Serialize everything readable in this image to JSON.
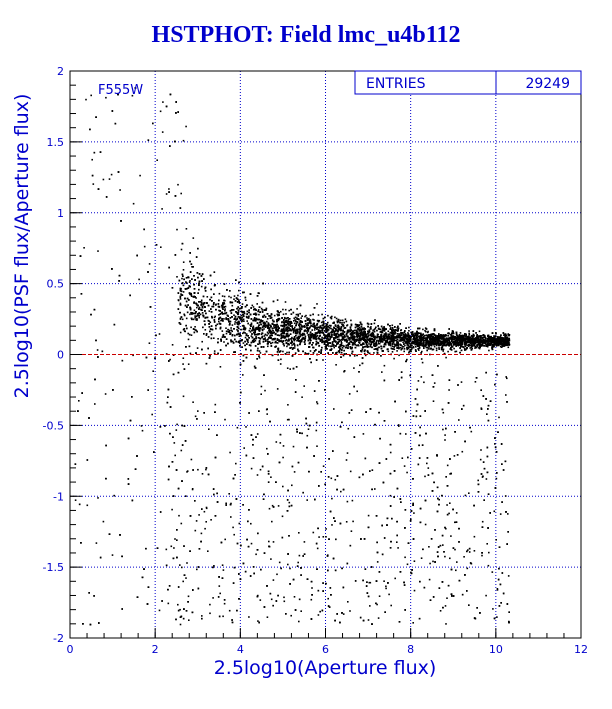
{
  "chart_data": {
    "type": "scatter",
    "title": "HSTPHOT: Field lmc_u4b112",
    "xlabel": "2.5log10(Aperture flux)",
    "ylabel": "2.5log10(PSF flux/Aperture flux)",
    "xlim": [
      0,
      12
    ],
    "ylim": [
      -2,
      2
    ],
    "x_ticks": [
      "0",
      "2",
      "4",
      "6",
      "8",
      "10",
      "12"
    ],
    "y_ticks": [
      "-2",
      "-1.5",
      "-1",
      "-0.5",
      "0",
      "0.5",
      "1",
      "1.5",
      "2"
    ],
    "grid": true,
    "reference_line_y": 0,
    "annotation": "F555W",
    "stats": {
      "entries_label": "ENTRIES",
      "entries_value": "29249"
    },
    "colors": {
      "text": "#0000cc",
      "grid": "#0000cc",
      "points": "#000000",
      "reference_line": "#cc0000"
    },
    "distribution": [
      {
        "x": 2.6,
        "y_mean": 0.42,
        "y_spread": 0.22
      },
      {
        "x": 3.0,
        "y_mean": 0.33,
        "y_spread": 0.2
      },
      {
        "x": 3.5,
        "y_mean": 0.26,
        "y_spread": 0.17
      },
      {
        "x": 4.0,
        "y_mean": 0.22,
        "y_spread": 0.14
      },
      {
        "x": 5.0,
        "y_mean": 0.17,
        "y_spread": 0.11
      },
      {
        "x": 6.0,
        "y_mean": 0.14,
        "y_spread": 0.09
      },
      {
        "x": 7.0,
        "y_mean": 0.12,
        "y_spread": 0.07
      },
      {
        "x": 8.0,
        "y_mean": 0.11,
        "y_spread": 0.05
      },
      {
        "x": 9.0,
        "y_mean": 0.1,
        "y_spread": 0.04
      },
      {
        "x": 10.0,
        "y_mean": 0.1,
        "y_spread": 0.03
      }
    ]
  }
}
